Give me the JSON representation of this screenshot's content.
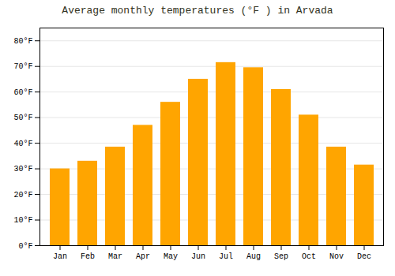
{
  "chart_data": {
    "type": "bar",
    "title": "Average monthly temperatures (°F ) in Arvada",
    "categories": [
      "Jan",
      "Feb",
      "Mar",
      "Apr",
      "May",
      "Jun",
      "Jul",
      "Aug",
      "Sep",
      "Oct",
      "Nov",
      "Dec"
    ],
    "values": [
      30,
      33,
      38.5,
      47,
      56,
      65,
      71.5,
      69.5,
      61,
      51,
      38.5,
      31.5
    ],
    "color": "#FFA500",
    "ylim": [
      0,
      85
    ],
    "yticks": [
      {
        "value": 0,
        "label": "0°F"
      },
      {
        "value": 10,
        "label": "10°F"
      },
      {
        "value": 20,
        "label": "20°F"
      },
      {
        "value": 30,
        "label": "30°F"
      },
      {
        "value": 40,
        "label": "40°F"
      },
      {
        "value": 50,
        "label": "50°F"
      },
      {
        "value": 60,
        "label": "60°F"
      },
      {
        "value": 70,
        "label": "70°F"
      },
      {
        "value": 80,
        "label": "80°F"
      }
    ],
    "grid": true
  }
}
